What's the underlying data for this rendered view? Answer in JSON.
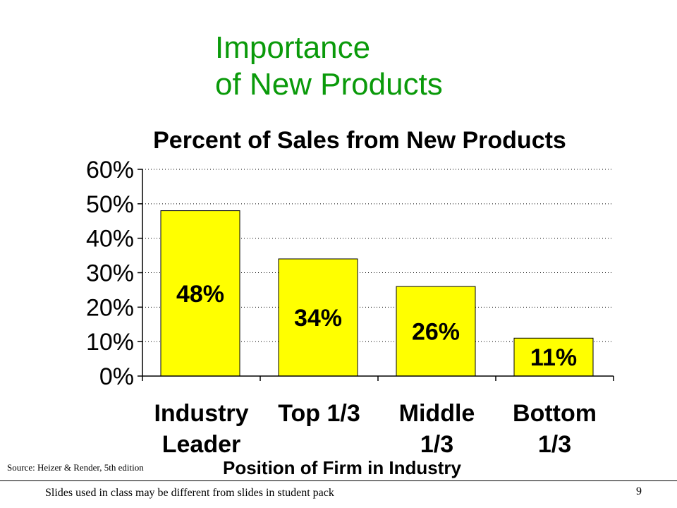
{
  "slide": {
    "title_line1": "Importance",
    "title_line2": "of New Products",
    "title_color": "#0a9a0a",
    "source": "Source: Heizer & Render, 5th edition",
    "footer": "Slides used in class may be different from slides in student pack",
    "page_number": "9"
  },
  "chart_data": {
    "type": "bar",
    "title": "Percent of Sales from New Products",
    "xlabel": "Position of Firm in Industry",
    "ylabel": "",
    "categories": [
      [
        "Industry",
        "Leader"
      ],
      [
        "Top 1/3"
      ],
      [
        "Middle",
        "1/3"
      ],
      [
        "Bottom",
        "1/3"
      ]
    ],
    "values": [
      48,
      34,
      26,
      11
    ],
    "data_labels": [
      "48%",
      "34%",
      "26%",
      "11%"
    ],
    "ylim": [
      0,
      60
    ],
    "yticks": [
      0,
      10,
      20,
      30,
      40,
      50,
      60
    ],
    "ytick_labels": [
      "0%",
      "10%",
      "20%",
      "30%",
      "40%",
      "50%",
      "60%"
    ],
    "grid": true,
    "bar_color": "#ffff00"
  }
}
